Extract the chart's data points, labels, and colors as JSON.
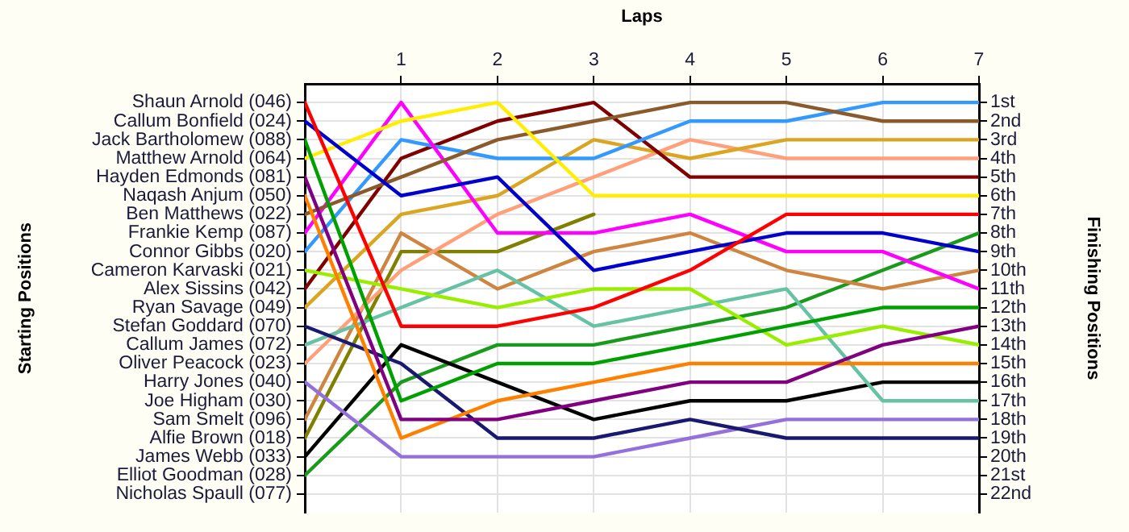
{
  "chart_data": {
    "type": "line",
    "xlabel": "Laps",
    "ylabel": "Finishing Positions",
    "x": [
      0,
      1,
      2,
      3,
      4,
      5,
      6,
      7
    ],
    "xlim": [
      0,
      7
    ],
    "xticks": [
      1,
      2,
      3,
      4,
      5,
      6,
      7
    ],
    "annotations": [
      "Shaun Arnold (046)",
      "Callum Bonfield (024)",
      "Jack Bartholomew (088)",
      "Matthew Arnold (064)",
      "Hayden Edmonds (081)",
      "Naqash Anjum (050)",
      "Ben Matthews (022)",
      "Frankie Kemp (087)",
      "Connor Gibbs (020)",
      "Cameron Karvaski (021)",
      "Alex Sissins (042)",
      "Ryan Savage (049)",
      "Stefan Goddard (070)",
      "Callum James (072)",
      "Oliver Peacock (023)",
      "Harry Jones (040)",
      "Joe Higham (030)",
      "Sam Smelt (096)",
      "Alfie Brown (018)",
      "James Webb (033)",
      "Elliot Goodman (028)",
      "Nicholas Spaull (077)",
      "Starting Positions"
    ],
    "ylim": [
      23,
      0
    ],
    "yticks": [
      {
        "value": 1,
        "label": "1st"
      },
      {
        "value": 2,
        "label": "2nd"
      },
      {
        "value": 3,
        "label": "3rd"
      },
      {
        "value": 4,
        "label": "4th"
      },
      {
        "value": 5,
        "label": "5th"
      },
      {
        "value": 6,
        "label": "6th"
      },
      {
        "value": 7,
        "label": "7th"
      },
      {
        "value": 8,
        "label": "8th"
      },
      {
        "value": 9,
        "label": "9th"
      },
      {
        "value": 10,
        "label": "10th"
      },
      {
        "value": 11,
        "label": "11th"
      },
      {
        "value": 12,
        "label": "12th"
      },
      {
        "value": 13,
        "label": "13th"
      },
      {
        "value": 14,
        "label": "14th"
      },
      {
        "value": 15,
        "label": "15th"
      },
      {
        "value": 16,
        "label": "16th"
      },
      {
        "value": 17,
        "label": "17th"
      },
      {
        "value": 18,
        "label": "18th"
      },
      {
        "value": 19,
        "label": "19th"
      },
      {
        "value": 20,
        "label": "20th"
      },
      {
        "value": 21,
        "label": "21st"
      },
      {
        "value": 22,
        "label": "22nd"
      }
    ],
    "grid": true,
    "legend": false,
    "marker": "none",
    "line_style": "solid",
    "series": [
      {
        "color": "#ff0000",
        "values": [
          1,
          13,
          13,
          12,
          10,
          7,
          7,
          7
        ]
      },
      {
        "color": "#0000cd",
        "values": [
          2,
          6,
          5,
          10,
          9,
          8,
          8,
          9
        ]
      },
      {
        "color": "#00a000",
        "values": [
          3,
          17,
          15,
          15,
          14,
          13,
          12,
          12
        ]
      },
      {
        "color": "#ffee00",
        "values": [
          4,
          2,
          1,
          6,
          6,
          6,
          6,
          6
        ]
      },
      {
        "color": "#800080",
        "values": [
          5,
          18,
          18,
          17,
          16,
          16,
          14,
          13
        ]
      },
      {
        "color": "#ff8000",
        "values": [
          6,
          19,
          17,
          16,
          15,
          15,
          15,
          15
        ]
      },
      {
        "color": "#8b5a2b",
        "values": [
          7,
          5,
          3,
          2,
          1,
          1,
          2,
          2
        ]
      },
      {
        "color": "#ff00ff",
        "values": [
          8,
          1,
          8,
          8,
          7,
          9,
          9,
          11
        ]
      },
      {
        "color": "#3399ff",
        "values": [
          9,
          3,
          4,
          4,
          2,
          2,
          1,
          1
        ]
      },
      {
        "color": "#99ee00",
        "values": [
          10,
          11,
          12,
          11,
          11,
          14,
          13,
          14
        ]
      },
      {
        "color": "#800000",
        "values": [
          11,
          4,
          2,
          1,
          5,
          5,
          5,
          5
        ]
      },
      {
        "color": "#daa520",
        "values": [
          12,
          7,
          6,
          3,
          4,
          3,
          3,
          3
        ]
      },
      {
        "color": "#191970",
        "values": [
          13,
          15,
          19,
          19,
          18,
          19,
          19,
          19
        ]
      },
      {
        "color": "#66c2a5",
        "values": [
          14,
          12,
          10,
          13,
          12,
          11,
          17,
          17
        ]
      },
      {
        "color": "#ffa07a",
        "values": [
          15,
          10,
          7,
          5,
          3,
          4,
          4,
          4
        ]
      },
      {
        "color": "#9370db",
        "values": [
          16,
          20,
          20,
          20,
          19,
          18,
          18,
          18
        ]
      },
      {
        "color": "#cd853f",
        "values": [
          18,
          8,
          11,
          9,
          8,
          10,
          11,
          10
        ]
      },
      {
        "color": "#808000",
        "values": [
          19,
          9,
          9,
          7,
          null,
          null,
          null,
          null
        ]
      },
      {
        "color": "#000000",
        "values": [
          20,
          14,
          16,
          18,
          17,
          17,
          16,
          16
        ]
      },
      {
        "color": "#1a9a1a",
        "values": [
          21,
          16,
          14,
          14,
          13,
          12,
          10,
          8
        ]
      }
    ]
  }
}
